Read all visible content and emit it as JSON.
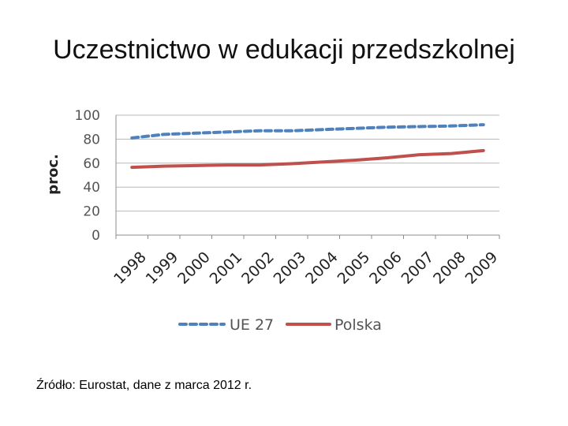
{
  "title": "Uczestnictwo w edukacji przedszkolnej",
  "source": "Źródło: Eurostat, dane z marca 2012 r.",
  "chart_data": {
    "type": "line",
    "title": "",
    "xlabel": "",
    "ylabel": "proc.",
    "ylim": [
      0,
      100
    ],
    "yticks": [
      "0",
      "20",
      "40",
      "60",
      "80",
      "100"
    ],
    "grid": true,
    "legend_position": "bottom",
    "categories": [
      "1998",
      "1999",
      "2000",
      "2001",
      "2002",
      "2003",
      "2004",
      "2005",
      "2006",
      "2007",
      "2008",
      "2009"
    ],
    "series": [
      {
        "name": "UE 27",
        "color": "#4F81BD",
        "style": "dashed",
        "values": [
          81,
          84,
          85,
          86,
          87,
          87,
          88,
          89,
          90,
          90.5,
          91,
          92
        ]
      },
      {
        "name": "Polska",
        "color": "#C0504D",
        "style": "solid",
        "values": [
          56.5,
          57.5,
          58,
          58.5,
          58.5,
          59.5,
          61,
          62.5,
          64.5,
          67,
          68,
          70.5
        ]
      }
    ]
  }
}
